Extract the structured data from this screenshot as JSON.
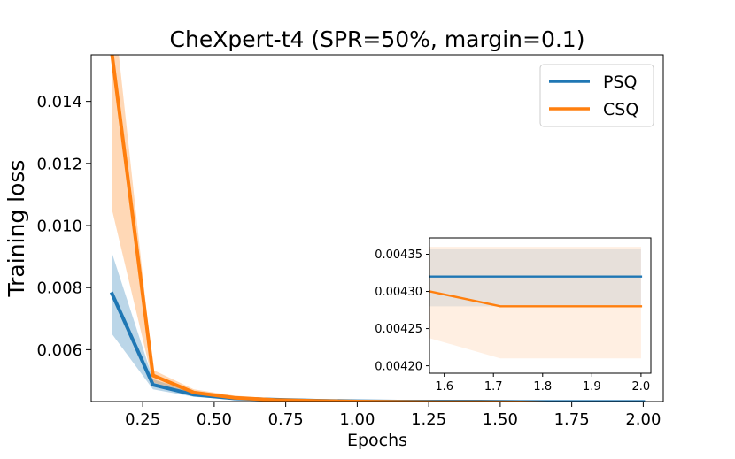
{
  "chart_data": [
    {
      "type": "line",
      "title": "CheXpert-t4 (SPR=50%, margin=0.1)",
      "xlabel": "Epochs",
      "ylabel": "Training loss",
      "xlim": [
        0.07,
        2.07
      ],
      "ylim": [
        0.00433,
        0.0155
      ],
      "xticks": [
        0.25,
        0.5,
        0.75,
        1.0,
        1.25,
        1.5,
        1.75,
        2.0
      ],
      "xtick_labels": [
        "0.25",
        "0.50",
        "0.75",
        "1.00",
        "1.25",
        "1.50",
        "1.75",
        "2.00"
      ],
      "yticks": [
        0.006,
        0.008,
        0.01,
        0.012,
        0.014
      ],
      "ytick_labels": [
        "0.006",
        "0.008",
        "0.010",
        "0.012",
        "0.014"
      ],
      "grid": false,
      "legend_position": "top-right",
      "series": [
        {
          "name": "PSQ",
          "color": "#1f77b4",
          "x": [
            0.143,
            0.286,
            0.429,
            0.571,
            0.714,
            0.857,
            1.0,
            1.143,
            1.286,
            1.429,
            1.571,
            1.714,
            1.857,
            2.0
          ],
          "y": [
            0.0078,
            0.00487,
            0.00455,
            0.00443,
            0.00439,
            0.00436,
            0.00434,
            0.00433,
            0.00433,
            0.00433,
            0.00432,
            0.00432,
            0.00432,
            0.00432
          ],
          "y_lower": [
            0.0065,
            0.00472,
            0.00448,
            0.00439,
            0.00436,
            0.00434,
            0.00432,
            0.00431,
            0.0043,
            0.00429,
            0.00428,
            0.00428,
            0.00428,
            0.00428
          ],
          "y_upper": [
            0.0091,
            0.00505,
            0.00462,
            0.00448,
            0.00443,
            0.00439,
            0.00437,
            0.00436,
            0.00436,
            0.00436,
            0.004357,
            0.004357,
            0.004357,
            0.004357
          ]
        },
        {
          "name": "CSQ",
          "color": "#ff7f0e",
          "x": [
            0.143,
            0.286,
            0.429,
            0.571,
            0.714,
            0.857,
            1.0,
            1.143,
            1.286,
            1.429,
            1.571,
            1.714,
            1.857,
            2.0
          ],
          "y": [
            0.0155,
            0.00517,
            0.00462,
            0.00445,
            0.00438,
            0.00435,
            0.00433,
            0.00432,
            0.00431,
            0.00431,
            0.0043,
            0.00428,
            0.00428,
            0.00428
          ],
          "y_lower": [
            0.0105,
            0.00495,
            0.00452,
            0.00439,
            0.00433,
            0.00429,
            0.00427,
            0.00426,
            0.00425,
            0.00424,
            0.004237,
            0.00421,
            0.00421,
            0.00421
          ],
          "y_upper": [
            0.0175,
            0.00535,
            0.00472,
            0.00452,
            0.00443,
            0.0044,
            0.00438,
            0.00437,
            0.00436,
            0.00436,
            0.00436,
            0.00436,
            0.00436,
            0.00436
          ]
        }
      ]
    },
    {
      "type": "line",
      "title": "",
      "xlabel": "",
      "ylabel": "",
      "xlim": [
        1.57,
        2.02
      ],
      "ylim": [
        0.00419,
        0.004372
      ],
      "xticks": [
        1.6,
        1.7,
        1.8,
        1.9,
        2.0
      ],
      "xtick_labels": [
        "1.6",
        "1.7",
        "1.8",
        "1.9",
        "2.0"
      ],
      "yticks": [
        0.0042,
        0.00425,
        0.0043,
        0.00435
      ],
      "ytick_labels": [
        "0.00420",
        "0.00425",
        "0.00430",
        "0.00435"
      ],
      "grid": false,
      "series": [
        {
          "name": "PSQ",
          "color": "#1f77b4",
          "x": [
            1.571,
            1.714,
            1.857,
            2.0
          ],
          "y": [
            0.00432,
            0.00432,
            0.00432,
            0.00432
          ],
          "y_lower": [
            0.00428,
            0.00428,
            0.00428,
            0.00428
          ],
          "y_upper": [
            0.004357,
            0.004357,
            0.004357,
            0.004357
          ]
        },
        {
          "name": "CSQ",
          "color": "#ff7f0e",
          "x": [
            1.571,
            1.714,
            1.857,
            2.0
          ],
          "y": [
            0.0043,
            0.00428,
            0.00428,
            0.00428
          ],
          "y_lower": [
            0.004237,
            0.00421,
            0.00421,
            0.00421
          ],
          "y_upper": [
            0.00436,
            0.00436,
            0.00436,
            0.00436
          ]
        }
      ]
    }
  ]
}
